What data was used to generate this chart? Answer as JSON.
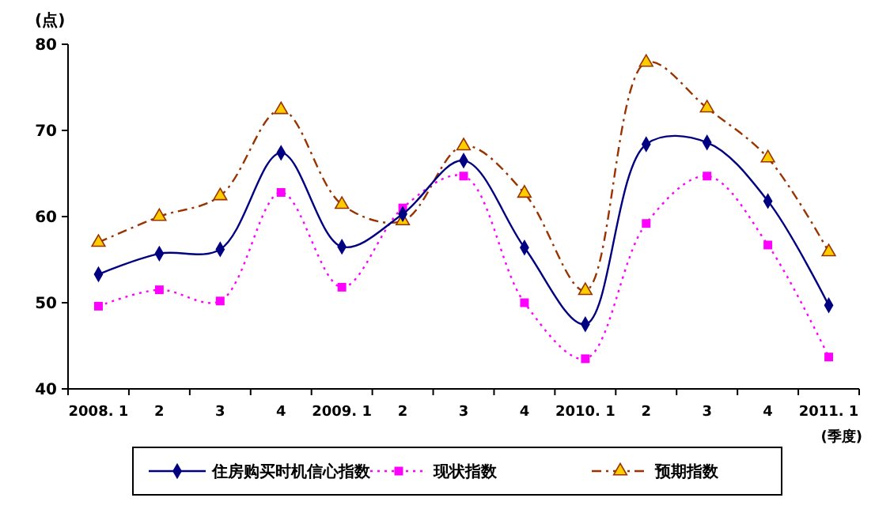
{
  "chart_data": {
    "type": "line",
    "ylabel": "(点)",
    "xlabel": "(季度)",
    "categories": [
      "2008. 1",
      "2",
      "3",
      "4",
      "2009. 1",
      "2",
      "3",
      "4",
      "2010. 1",
      "2",
      "3",
      "4",
      "2011. 1"
    ],
    "ylim": [
      40,
      80
    ],
    "yticks": [
      40,
      50,
      60,
      70,
      80
    ],
    "grid": false,
    "legend": "bottom",
    "series": [
      {
        "name": "住房购买时机信心指数",
        "color": "#000080",
        "marker": "diamond",
        "line_style": "solid",
        "values": [
          53.3,
          55.7,
          56.2,
          67.4,
          56.5,
          60.3,
          66.5,
          56.4,
          47.5,
          68.4,
          68.6,
          61.8,
          49.7
        ]
      },
      {
        "name": "现状指数",
        "color": "#ff00ff",
        "marker": "square",
        "line_style": "dotted",
        "values": [
          49.6,
          51.5,
          50.2,
          62.8,
          51.8,
          61.0,
          64.7,
          50.0,
          43.5,
          59.2,
          64.7,
          56.7,
          43.7
        ]
      },
      {
        "name": "预期指数",
        "color": "#993300",
        "marker": "triangle",
        "line_style": "dashed",
        "values": [
          57.0,
          60.0,
          62.4,
          72.4,
          61.4,
          59.5,
          68.2,
          62.7,
          51.4,
          77.9,
          72.6,
          66.8,
          55.9
        ]
      }
    ]
  }
}
